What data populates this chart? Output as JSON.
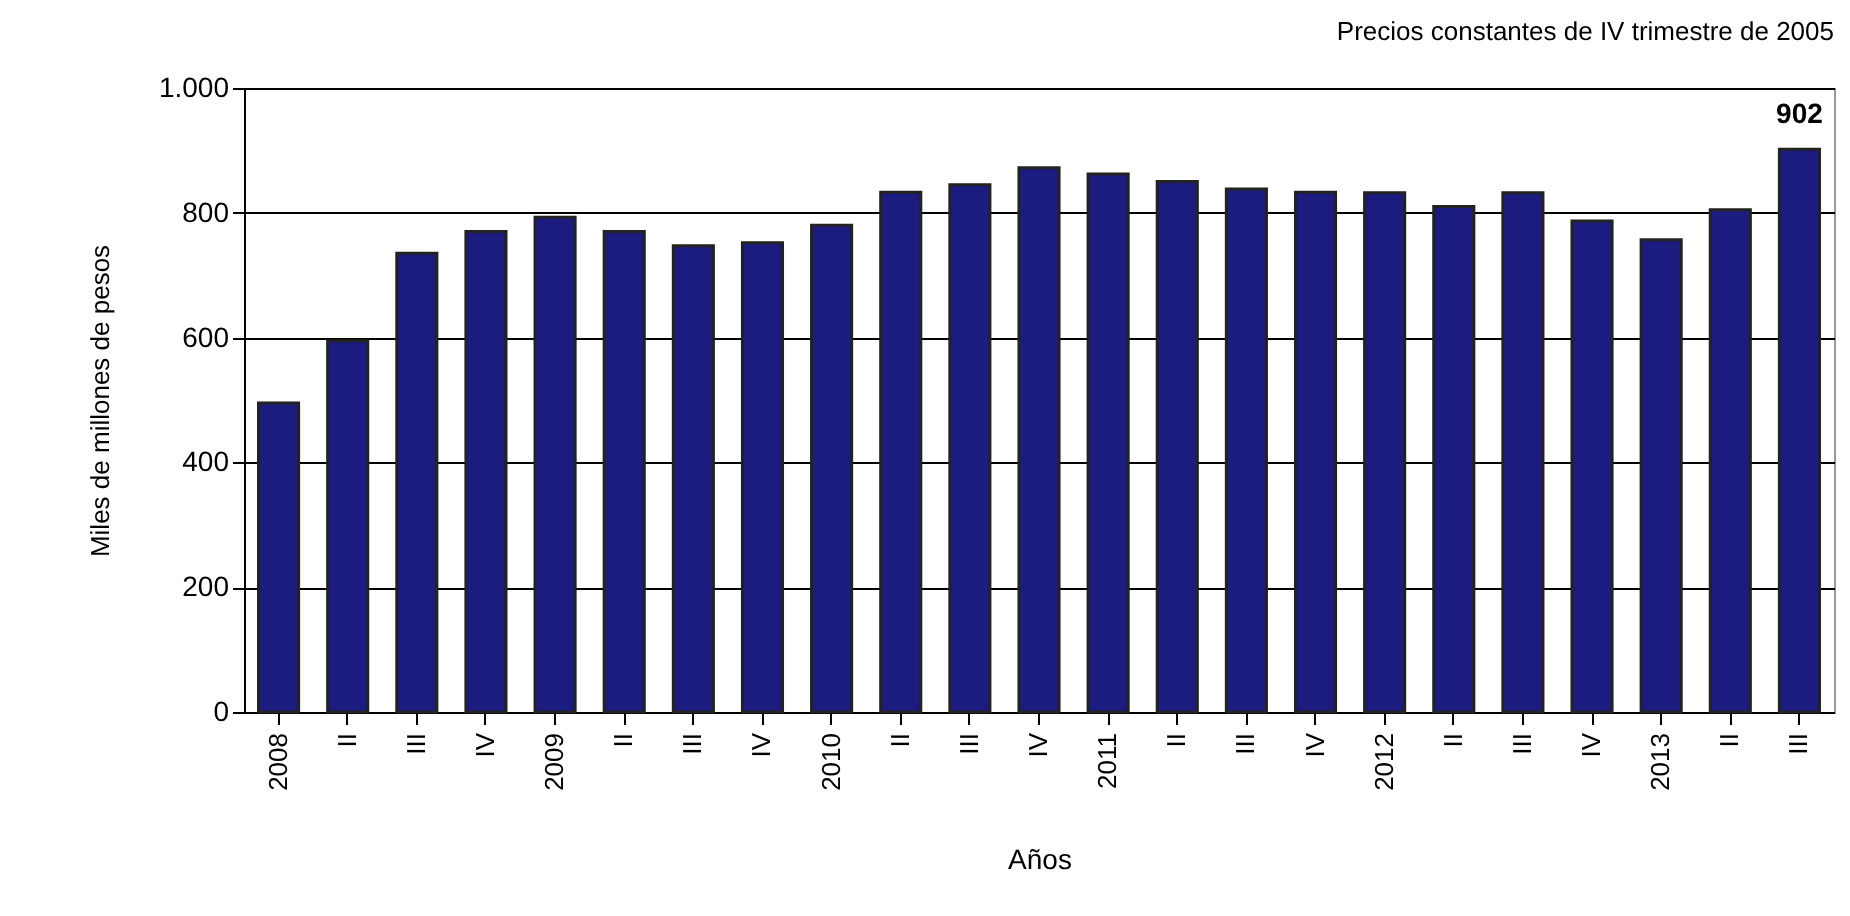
{
  "chart_data": {
    "type": "bar",
    "title": "Precios constantes de IV trimestre de 2005",
    "xlabel": "Años",
    "ylabel": "Miles de millones de pesos",
    "categories": [
      "2008",
      "II",
      "III",
      "IV",
      "2009",
      "II",
      "III",
      "IV",
      "2010",
      "II",
      "III",
      "IV",
      "2011",
      "II",
      "III",
      "IV",
      "2012",
      "II",
      "III",
      "IV",
      "2013",
      "II",
      "III"
    ],
    "values": [
      495,
      595,
      735,
      770,
      793,
      770,
      747,
      752,
      780,
      833,
      845,
      872,
      862,
      850,
      838,
      833,
      832,
      810,
      832,
      787,
      757,
      805,
      902
    ],
    "value_labels": [
      null,
      null,
      null,
      null,
      null,
      null,
      null,
      null,
      null,
      null,
      null,
      null,
      null,
      null,
      null,
      null,
      null,
      null,
      null,
      null,
      null,
      null,
      "902"
    ],
    "color": "#1c1c80",
    "ylim": [
      0,
      1000
    ],
    "yticks": [
      0,
      200,
      400,
      600,
      800,
      {
        "value": 1000,
        "label": "1.000"
      }
    ],
    "grid": "y"
  }
}
